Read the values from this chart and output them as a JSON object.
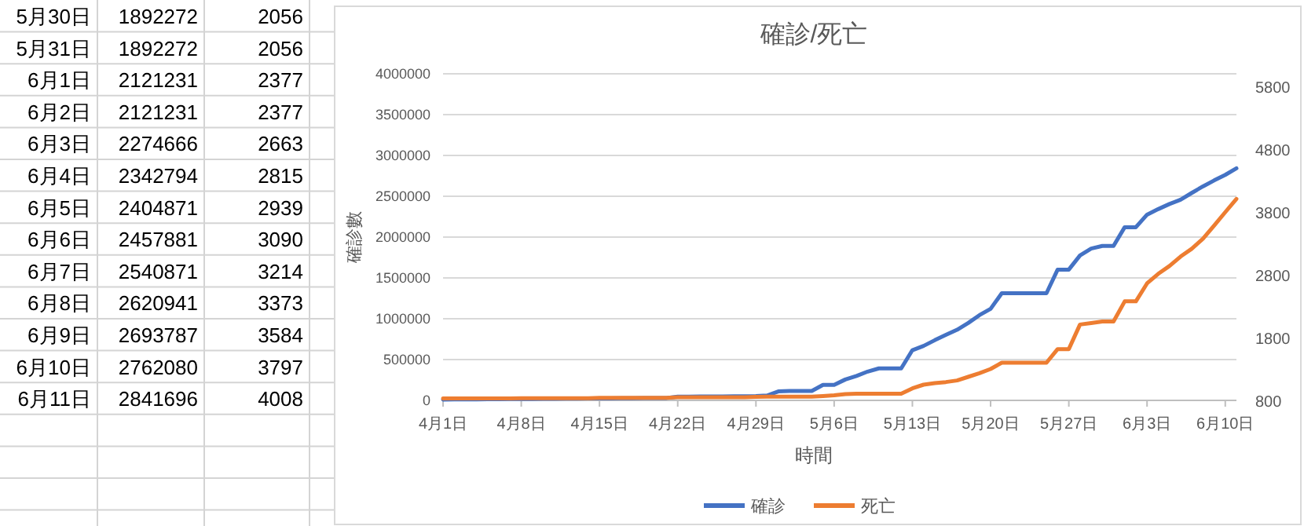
{
  "chart_data": [
    {
      "type": "other",
      "categories": [
        "5月30日",
        "5月31日",
        "6月1日",
        "6月2日",
        "6月3日",
        "6月4日",
        "6月5日",
        "6月6日",
        "6月7日",
        "6月8日",
        "6月9日",
        "6月10日",
        "6月11日"
      ],
      "annotations": [
        "1892272",
        "2056",
        "1892272",
        "2056",
        "2121231",
        "2377",
        "2121231",
        "2377",
        "2274666",
        "2663",
        "2342794",
        "2815",
        "2404871",
        "2939",
        "2457881",
        "3090",
        "2540871",
        "3214",
        "2620941",
        "3373",
        "2693787",
        "3584",
        "2762080",
        "3797",
        "2841696",
        "4008"
      ]
    },
    {
      "type": "line",
      "title": "確診/死亡",
      "xlabel": "時間",
      "ylabel": "確診數",
      "grid": "y",
      "legend": "bottom",
      "x": [
        "--04-01",
        "--04-02",
        "--04-03",
        "--04-04",
        "--04-05",
        "--04-06",
        "--04-07",
        "--04-08",
        "--04-09",
        "--04-10",
        "--04-11",
        "--04-12",
        "--04-13",
        "--04-14",
        "--04-15",
        "--04-16",
        "--04-17",
        "--04-18",
        "--04-19",
        "--04-20",
        "--04-21",
        "--04-22",
        "--04-23",
        "--04-24",
        "--04-25",
        "--04-26",
        "--04-27",
        "--04-28",
        "--04-29",
        "--04-30",
        "--05-01",
        "--05-02",
        "--05-03",
        "--05-04",
        "--05-05",
        "--05-06",
        "--05-07",
        "--05-08",
        "--05-09",
        "--05-10",
        "--05-11",
        "--05-12",
        "--05-13",
        "--05-14",
        "--05-15",
        "--05-16",
        "--05-17",
        "--05-18",
        "--05-19",
        "--05-20",
        "--05-21",
        "--05-22",
        "--05-23",
        "--05-24",
        "--05-25",
        "--05-26",
        "--05-27",
        "--05-28",
        "--05-29",
        "--05-30",
        "--05-31",
        "--06-01",
        "--06-02",
        "--06-03",
        "--06-04",
        "--06-05",
        "--06-06",
        "--06-07",
        "--06-08",
        "--06-09",
        "--06-10",
        "--06-11"
      ],
      "xlim": [
        "--04-01",
        "--06-11"
      ],
      "xticks": [
        {
          "value": "--04-01",
          "label": "4月1日"
        },
        {
          "value": "--04-08",
          "label": "4月8日"
        },
        {
          "value": "--04-15",
          "label": "4月15日"
        },
        {
          "value": "--04-22",
          "label": "4月22日"
        },
        {
          "value": "--04-29",
          "label": "4月29日"
        },
        {
          "value": "--05-06",
          "label": "5月6日"
        },
        {
          "value": "--05-13",
          "label": "5月13日"
        },
        {
          "value": "--05-20",
          "label": "5月20日"
        },
        {
          "value": "--05-27",
          "label": "5月27日"
        },
        {
          "value": "--06-03",
          "label": "6月3日"
        },
        {
          "value": "--06-10",
          "label": "6月10日"
        }
      ],
      "ylim": [
        0,
        4000000
      ],
      "yticks": [
        0,
        500000,
        1000000,
        1500000,
        2000000,
        2500000,
        3000000,
        3500000,
        4000000
      ],
      "y2lim": [
        800,
        6000
      ],
      "y2ticks": [
        800,
        1800,
        2800,
        3800,
        4800,
        5800
      ],
      "series": [
        {
          "name": "確診",
          "color": "#4472c4",
          "values": [
            10000,
            11000,
            12000,
            13000,
            14000,
            15000,
            16000,
            17000,
            18000,
            19000,
            20000,
            21000,
            22000,
            23000,
            24000,
            25000,
            26000,
            27000,
            28000,
            29000,
            30000,
            45000,
            46000,
            47000,
            48000,
            49000,
            50000,
            51000,
            52000,
            60000,
            110000,
            115000,
            115000,
            115000,
            190000,
            190000,
            256000,
            300000,
            353000,
            392000,
            392000,
            392000,
            615000,
            667000,
            737000,
            802000,
            865000,
            948000,
            1044000,
            1121000,
            1313000,
            1313000,
            1313000,
            1313000,
            1313000,
            1602000,
            1602000,
            1775000,
            1859000,
            1892272,
            1892272,
            2121231,
            2121231,
            2274666,
            2342794,
            2404871,
            2457881,
            2540871,
            2620941,
            2693787,
            2762080,
            2841696
          ]
        },
        {
          "name": "死亡",
          "color": "#ed7d31",
          "axis": "y2",
          "values": [
            830,
            830,
            830,
            830,
            830,
            830,
            830,
            835,
            835,
            835,
            835,
            835,
            835,
            835,
            840,
            840,
            840,
            840,
            840,
            840,
            840,
            850,
            850,
            850,
            850,
            850,
            850,
            850,
            855,
            860,
            860,
            860,
            860,
            860,
            870,
            880,
            900,
            907,
            907,
            907,
            907,
            907,
            992,
            1050,
            1075,
            1092,
            1117,
            1175,
            1233,
            1300,
            1400,
            1400,
            1400,
            1400,
            1400,
            1617,
            1617,
            2008,
            2030,
            2056,
            2056,
            2377,
            2377,
            2663,
            2815,
            2939,
            3090,
            3214,
            3373,
            3584,
            3797,
            4008
          ]
        }
      ]
    }
  ]
}
